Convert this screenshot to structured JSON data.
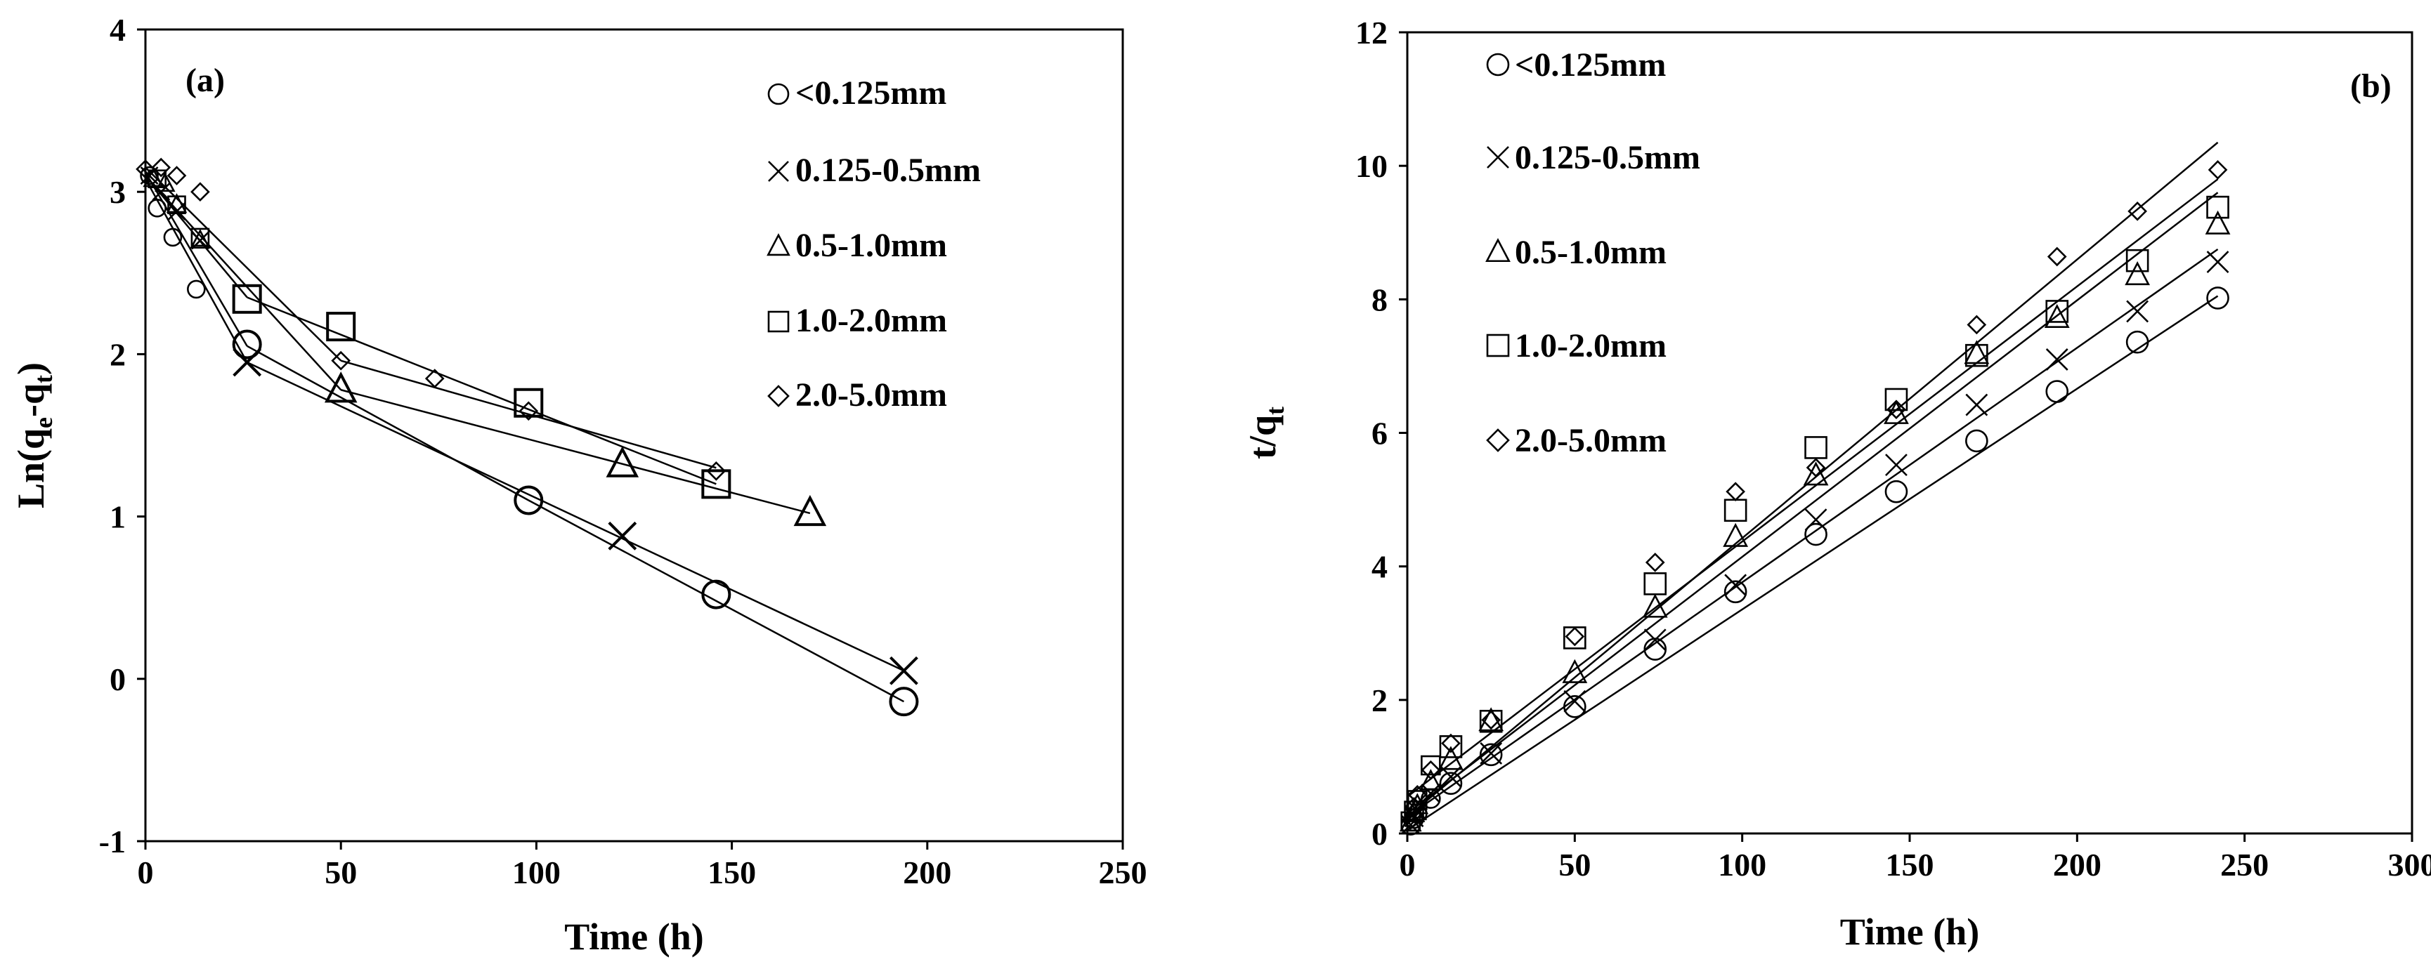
{
  "chart_data": [
    {
      "type": "line",
      "panel_label": "(a)",
      "xlabel": "Time (h)",
      "ylabel_parts": [
        "Ln(q",
        "e",
        "-q",
        "t",
        ")"
      ],
      "xlim": [
        0,
        250
      ],
      "ylim": [
        -1,
        4
      ],
      "xticks": [
        "0",
        "50",
        "100",
        "150",
        "200",
        "250"
      ],
      "yticks": [
        "-1",
        "0",
        "1",
        "2",
        "3",
        "4"
      ],
      "grid": false,
      "legend_position": "top-right",
      "series": [
        {
          "name": "<0.125mm",
          "marker": "circle",
          "points": [
            [
              1,
              3.1
            ],
            [
              3,
              2.9
            ],
            [
              7,
              2.72
            ],
            [
              13,
              2.4
            ],
            [
              26,
              2.06
            ],
            [
              98,
              1.1
            ],
            [
              146,
              0.52
            ],
            [
              194,
              -0.14
            ]
          ],
          "big_points": [
            [
              26,
              2.06
            ],
            [
              98,
              1.1
            ],
            [
              146,
              0.52
            ],
            [
              194,
              -0.14
            ]
          ],
          "segments": [
            [
              [
                0,
                3.12
              ],
              [
                26,
                2.05
              ]
            ],
            [
              [
                26,
                2.05
              ],
              [
                98,
                1.1
              ]
            ],
            [
              [
                98,
                1.1
              ],
              [
                194,
                -0.14
              ]
            ]
          ]
        },
        {
          "name": "0.125-0.5mm",
          "marker": "x",
          "points": [
            [
              1,
              3.1
            ],
            [
              4,
              3.0
            ],
            [
              8,
              2.88
            ],
            [
              14,
              2.7
            ],
            [
              26,
              1.95
            ],
            [
              122,
              0.88
            ],
            [
              194,
              0.05
            ]
          ],
          "big_points": [
            [
              26,
              1.95
            ],
            [
              122,
              0.88
            ],
            [
              194,
              0.05
            ]
          ],
          "segments": [
            [
              [
                0,
                3.08
              ],
              [
                26,
                1.95
              ]
            ],
            [
              [
                26,
                1.95
              ],
              [
                194,
                0.05
              ]
            ]
          ]
        },
        {
          "name": "0.5-1.0mm",
          "marker": "triangle",
          "points": [
            [
              2,
              3.08
            ],
            [
              5,
              3.05
            ],
            [
              8,
              2.92
            ],
            [
              14,
              2.7
            ],
            [
              50,
              1.78
            ],
            [
              122,
              1.32
            ],
            [
              170,
              1.02
            ]
          ],
          "big_points": [
            [
              50,
              1.78
            ],
            [
              122,
              1.32
            ],
            [
              170,
              1.02
            ]
          ],
          "segments": [
            [
              [
                0,
                3.1
              ],
              [
                50,
                1.78
              ]
            ],
            [
              [
                50,
                1.78
              ],
              [
                170,
                1.02
              ]
            ]
          ]
        },
        {
          "name": "1.0-2.0mm",
          "marker": "square",
          "points": [
            [
              3,
              3.08
            ],
            [
              8,
              2.92
            ],
            [
              14,
              2.72
            ],
            [
              26,
              2.34
            ],
            [
              50,
              2.17
            ],
            [
              98,
              1.7
            ],
            [
              146,
              1.2
            ]
          ],
          "big_points": [
            [
              26,
              2.34
            ],
            [
              50,
              2.17
            ],
            [
              98,
              1.7
            ],
            [
              146,
              1.2
            ]
          ],
          "segments": [
            [
              [
                0,
                3.1
              ],
              [
                26,
                2.35
              ]
            ],
            [
              [
                26,
                2.35
              ],
              [
                146,
                1.2
              ]
            ]
          ]
        },
        {
          "name": "2.0-5.0mm",
          "marker": "diamond",
          "points": [
            [
              0,
              3.14
            ],
            [
              4,
              3.15
            ],
            [
              8,
              3.1
            ],
            [
              14,
              3.0
            ],
            [
              50,
              1.96
            ],
            [
              74,
              1.85
            ],
            [
              98,
              1.65
            ],
            [
              146,
              1.28
            ]
          ],
          "big_points": [],
          "segments": [
            [
              [
                0,
                3.15
              ],
              [
                50,
                1.96
              ]
            ],
            [
              [
                50,
                1.96
              ],
              [
                146,
                1.3
              ]
            ]
          ]
        }
      ]
    },
    {
      "type": "line",
      "panel_label": "(b)",
      "xlabel": "Time (h)",
      "ylabel_parts": [
        "t/q",
        "t"
      ],
      "xlim": [
        0,
        300
      ],
      "ylim": [
        0,
        12
      ],
      "xticks": [
        "0",
        "50",
        "100",
        "150",
        "200",
        "250",
        "300"
      ],
      "yticks": [
        "0",
        "2",
        "4",
        "6",
        "8",
        "10",
        "12"
      ],
      "grid": false,
      "legend_position": "top-left",
      "x": [
        1,
        2,
        3,
        7,
        13,
        25,
        50,
        74,
        98,
        122,
        146,
        170,
        194,
        218,
        242
      ],
      "series": [
        {
          "name": "<0.125mm",
          "marker": "circle",
          "y": [
            0.12,
            0.22,
            0.3,
            0.52,
            0.75,
            1.18,
            1.9,
            2.76,
            3.62,
            4.48,
            5.12,
            5.88,
            6.62,
            7.36,
            8.02
          ],
          "fit": [
            [
              0,
              0.05
            ],
            [
              242,
              8.05
            ]
          ]
        },
        {
          "name": "0.125-0.5mm",
          "marker": "x",
          "y": [
            0.13,
            0.24,
            0.34,
            0.6,
            0.85,
            1.2,
            1.98,
            2.9,
            3.72,
            4.7,
            5.52,
            6.42,
            7.1,
            7.82,
            8.56
          ],
          "fit": [
            [
              0,
              0.25
            ],
            [
              242,
              8.75
            ]
          ]
        },
        {
          "name": "0.5-1.0mm",
          "marker": "triangle",
          "y": [
            0.16,
            0.3,
            0.42,
            0.78,
            1.1,
            1.68,
            2.4,
            3.38,
            4.44,
            5.36,
            6.28,
            7.18,
            7.72,
            8.36,
            9.12
          ],
          "fit": [
            [
              0,
              0.3
            ],
            [
              242,
              9.6
            ]
          ]
        },
        {
          "name": "1.0-2.0mm",
          "marker": "square",
          "y": [
            0.18,
            0.34,
            0.5,
            1.02,
            1.3,
            1.68,
            2.93,
            3.74,
            4.84,
            5.78,
            6.5,
            7.16,
            7.82,
            8.58,
            9.38
          ],
          "fit": [
            [
              0,
              0.55
            ],
            [
              242,
              9.8
            ]
          ]
        },
        {
          "name": "2.0-5.0mm",
          "marker": "diamond",
          "y": [
            0.2,
            0.4,
            0.58,
            0.95,
            1.35,
            1.7,
            2.95,
            4.06,
            5.12,
            5.48,
            6.35,
            7.62,
            8.64,
            9.32,
            9.94
          ],
          "fit": [
            [
              0,
              0.25
            ],
            [
              242,
              10.35
            ]
          ]
        }
      ]
    }
  ]
}
